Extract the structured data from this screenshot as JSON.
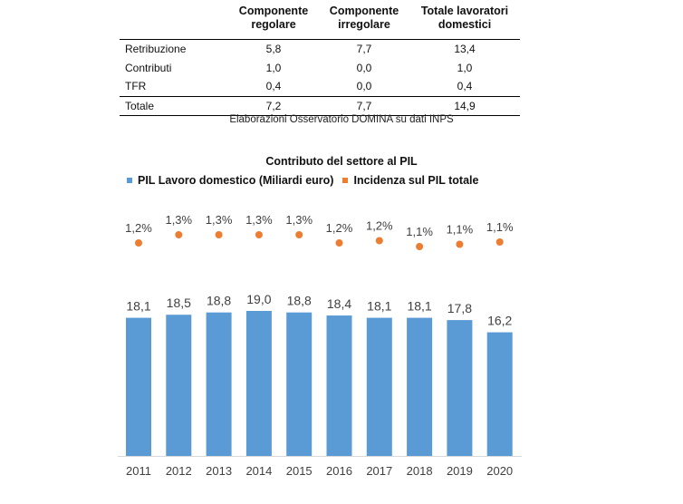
{
  "table": {
    "headers": [
      "",
      "Componente regolare",
      "Componente irregolare",
      "Totale lavoratori domestici"
    ],
    "header_lines": [
      [
        "",
        ""
      ],
      [
        "Componente",
        "regolare"
      ],
      [
        "Componente",
        "irregolare"
      ],
      [
        "Totale lavoratori",
        "domestici"
      ]
    ],
    "rows": [
      [
        "Retribuzione",
        "5,8",
        "7,7",
        "13,4"
      ],
      [
        "Contributi",
        "1,0",
        "0,0",
        "1,0"
      ],
      [
        "TFR",
        "0,4",
        "0,0",
        "0,4"
      ]
    ],
    "total": [
      "Totale",
      "7,2",
      "7,7",
      "14,9"
    ]
  },
  "source": "Elaborazioni Osservatorio DOMINA su dati INPS",
  "chart_data": {
    "type": "bar",
    "title": "Contributo del settore al PIL",
    "categories": [
      "2011",
      "2012",
      "2013",
      "2014",
      "2015",
      "2016",
      "2017",
      "2018",
      "2019",
      "2020"
    ],
    "series": [
      {
        "name": "PIL Lavoro domestico (Miliardi euro)",
        "type": "bar",
        "color": "#5b9bd5",
        "values": [
          18.1,
          18.5,
          18.8,
          19.0,
          18.8,
          18.4,
          18.1,
          18.1,
          17.8,
          16.2
        ],
        "labels": [
          "18,1",
          "18,5",
          "18,8",
          "19,0",
          "18,8",
          "18,4",
          "18,1",
          "18,1",
          "17,8",
          "16,2"
        ]
      },
      {
        "name": "Incidenza sul PIL totale",
        "type": "scatter",
        "color": "#ed7d31",
        "values": [
          1.2,
          1.3,
          1.3,
          1.3,
          1.3,
          1.2,
          1.2,
          1.1,
          1.1,
          1.1
        ],
        "labels": [
          "1,2%",
          "1,3%",
          "1,3%",
          "1,3%",
          "1,3%",
          "1,2%",
          "1,2%",
          "1,1%",
          "1,1%",
          "1,1%"
        ]
      }
    ],
    "xlabel": "",
    "ylabel": "",
    "legend_position": "top-left",
    "grid": false
  }
}
